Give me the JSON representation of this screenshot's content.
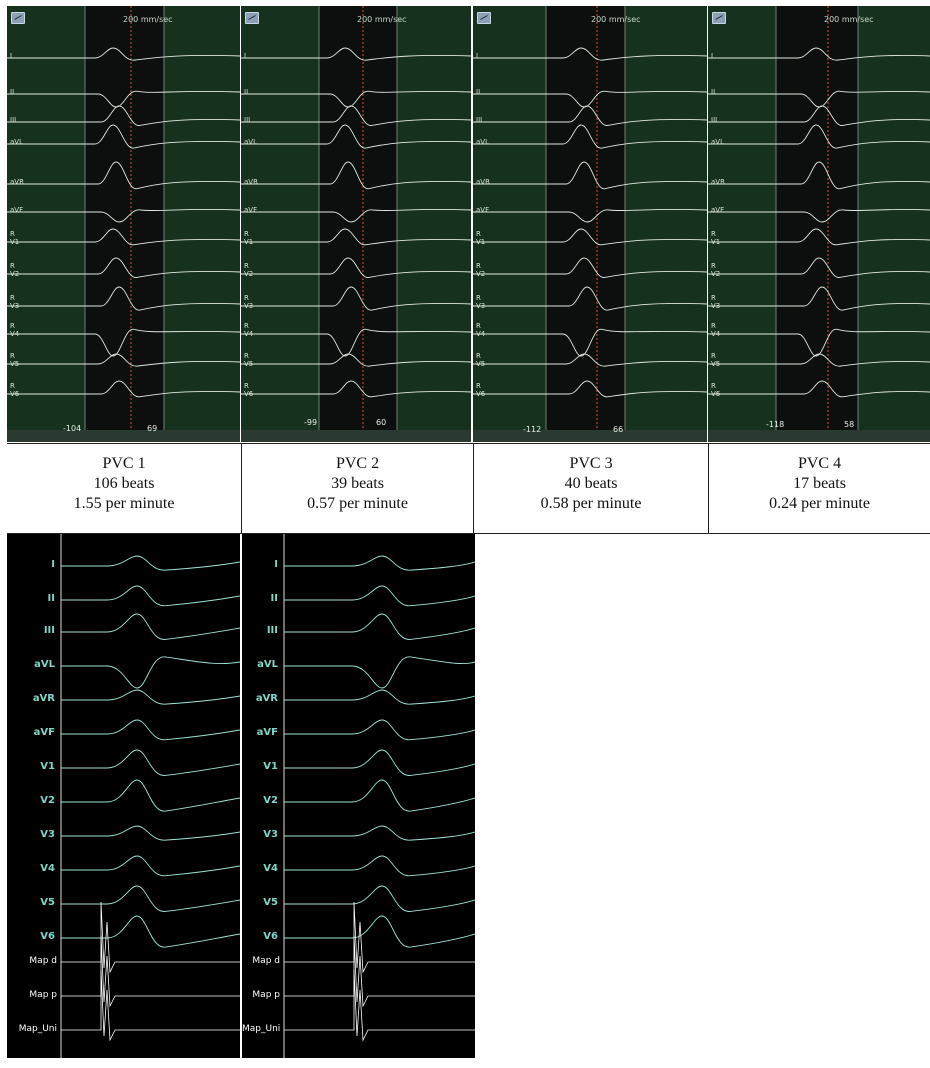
{
  "top_panels": [
    {
      "speed": "200 mm/sec",
      "leads": [
        "I",
        "II",
        "III",
        "aVL",
        "aVR",
        "aVF",
        "R\nV1",
        "R\nV2",
        "R\nV3",
        "R\nV4",
        "R\nV5",
        "R\nV6"
      ],
      "left_value": "-104",
      "right_value": "69"
    },
    {
      "speed": "200 mm/sec",
      "leads": [
        "I",
        "II",
        "III",
        "aVL",
        "aVR",
        "aVF",
        "R\nV1",
        "R\nV2",
        "R\nV3",
        "R\nV4",
        "R\nV5",
        "R\nV6"
      ],
      "left_value": "-99",
      "right_value": "60"
    },
    {
      "speed": "200 mm/sec",
      "leads": [
        "I",
        "II",
        "III",
        "aVL",
        "aVR",
        "aVF",
        "R\nV1",
        "R\nV2",
        "R\nV3",
        "R\nV4",
        "R\nV5",
        "R\nV6"
      ],
      "left_value": "-112",
      "right_value": "66"
    },
    {
      "speed": "200 mm/sec",
      "leads": [
        "I",
        "II",
        "III",
        "aVL",
        "aVR",
        "aVF",
        "R\nV1",
        "R\nV2",
        "R\nV3",
        "R\nV4",
        "R\nV5",
        "R\nV6"
      ],
      "left_value": "-118",
      "right_value": "58"
    }
  ],
  "captions": [
    {
      "name": "PVC 1",
      "beats": "106 beats",
      "rate": "1.55 per minute"
    },
    {
      "name": "PVC 2",
      "beats": "39 beats",
      "rate": "0.57 per minute"
    },
    {
      "name": "PVC 3",
      "beats": "40 beats",
      "rate": "0.58 per minute"
    },
    {
      "name": "PVC 4",
      "beats": "17 beats",
      "rate": "0.24 per minute"
    }
  ],
  "bottom_panels": [
    {
      "leads": [
        "I",
        "II",
        "III",
        "aVL",
        "aVR",
        "aVF",
        "V1",
        "V2",
        "V3",
        "V4",
        "V5",
        "V6"
      ],
      "map_leads": [
        "Map d",
        "Map p",
        "Map_Uni"
      ]
    },
    {
      "leads": [
        "I",
        "II",
        "III",
        "aVL",
        "aVR",
        "aVF",
        "V1",
        "V2",
        "V3",
        "V4",
        "V5",
        "V6"
      ],
      "map_leads": [
        "Map d",
        "Map p",
        "Map_Uni"
      ]
    }
  ],
  "colors": {
    "top_bg": "#17311f",
    "top_trace": "#dfe9df",
    "bottom_bg": "#000000",
    "bottom_trace": "#9fe3d6",
    "map_trace": "#ffffff",
    "marker": "#d0533a"
  }
}
